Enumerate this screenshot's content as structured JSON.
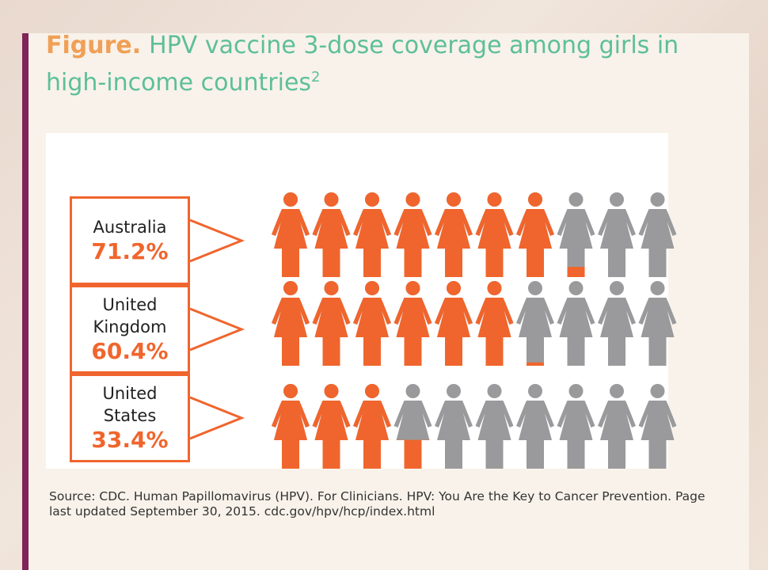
{
  "title": {
    "figure_label": "Figure.",
    "text": "HPV vaccine 3-dose coverage among girls in high-income countries",
    "superscript": "2"
  },
  "colors": {
    "vaccinated": "#f0652d",
    "unvaccinated": "#9a9a9c",
    "accent_bar": "#7e2458",
    "title": "#5dbf98",
    "figure_label": "#f0a056"
  },
  "chart_data": {
    "type": "pictogram",
    "icons_per_row": 10,
    "unit": "%",
    "series": [
      {
        "country_lines": [
          "Australia"
        ],
        "value_label": "71.2%",
        "value": 71.2
      },
      {
        "country_lines": [
          "United",
          "Kingdom"
        ],
        "value_label": "60.4%",
        "value": 60.4
      },
      {
        "country_lines": [
          "United",
          "States"
        ],
        "value_label": "33.4%",
        "value": 33.4
      }
    ]
  },
  "source": "Source: CDC. Human Papillomavirus (HPV). For Clinicians. HPV: You Are the Key to Cancer Prevention. Page last updated September 30, 2015. cdc.gov/hpv/hcp/index.html"
}
